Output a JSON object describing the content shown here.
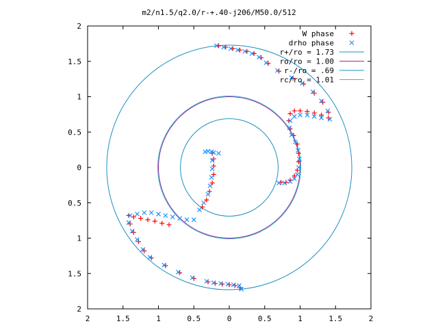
{
  "chart_data": {
    "type": "scatter",
    "title": "m2/n1.5/q2.0/r-+.40-j206/M50.0/512",
    "xlabel": "",
    "ylabel": "",
    "xlim": [
      -2,
      2
    ],
    "ylim": [
      -2,
      2
    ],
    "aspect": "equal",
    "grid": false,
    "legend_position": "top-right",
    "x_ticks": [
      -2,
      -1.5,
      -1,
      -0.5,
      0,
      0.5,
      1,
      1.5,
      2
    ],
    "y_ticks": [
      -2,
      -1.5,
      -1,
      -0.5,
      0,
      0.5,
      1,
      1.5,
      2
    ],
    "x_tick_labels": [
      "2",
      "1.5",
      "1",
      "0.5",
      "0",
      "0.5",
      "1",
      "1.5",
      "2"
    ],
    "y_tick_labels": [
      "2",
      "1.5",
      "1",
      "0.5",
      "0",
      "0.5",
      "1",
      "1.5",
      "2"
    ],
    "series": [
      {
        "name": "W phase",
        "marker": "plus",
        "color": "#ff0000",
        "points": [
          [
            -0.15,
            1.72
          ],
          [
            -0.05,
            1.7
          ],
          [
            0.05,
            1.68
          ],
          [
            0.15,
            1.66
          ],
          [
            0.25,
            1.64
          ],
          [
            0.35,
            1.61
          ],
          [
            0.45,
            1.55
          ],
          [
            0.55,
            1.47
          ],
          [
            0.7,
            1.36
          ],
          [
            0.9,
            1.26
          ],
          [
            1.05,
            1.18
          ],
          [
            1.2,
            1.05
          ],
          [
            1.32,
            0.92
          ],
          [
            1.4,
            0.78
          ],
          [
            1.4,
            0.7
          ],
          [
            1.3,
            0.74
          ],
          [
            1.2,
            0.77
          ],
          [
            1.1,
            0.79
          ],
          [
            1.0,
            0.8
          ],
          [
            0.92,
            0.8
          ],
          [
            0.86,
            0.76
          ],
          [
            0.84,
            0.66
          ],
          [
            0.86,
            0.55
          ],
          [
            0.91,
            0.45
          ],
          [
            0.96,
            0.33
          ],
          [
            0.98,
            0.2
          ],
          [
            0.98,
            0.08
          ],
          [
            0.96,
            -0.04
          ],
          [
            0.92,
            -0.12
          ],
          [
            0.86,
            -0.18
          ],
          [
            0.8,
            -0.21
          ],
          [
            0.73,
            -0.21
          ],
          [
            -0.24,
            0.2
          ],
          [
            -0.22,
            0.12
          ],
          [
            -0.22,
            0.02
          ],
          [
            -0.22,
            -0.1
          ],
          [
            -0.24,
            -0.22
          ],
          [
            -0.28,
            -0.34
          ],
          [
            -0.32,
            -0.46
          ],
          [
            -0.38,
            -0.56
          ],
          [
            -0.85,
            -0.81
          ],
          [
            -0.95,
            -0.79
          ],
          [
            -1.05,
            -0.76
          ],
          [
            -1.15,
            -0.74
          ],
          [
            -1.25,
            -0.72
          ],
          [
            -1.35,
            -0.7
          ],
          [
            -1.42,
            -0.68
          ],
          [
            -1.4,
            -0.8
          ],
          [
            -1.35,
            -0.92
          ],
          [
            -1.28,
            -1.05
          ],
          [
            -1.2,
            -1.18
          ],
          [
            -1.1,
            -1.28
          ],
          [
            -0.9,
            -1.39
          ],
          [
            -0.7,
            -1.49
          ],
          [
            -0.5,
            -1.57
          ],
          [
            -0.3,
            -1.62
          ],
          [
            -0.2,
            -1.64
          ],
          [
            -0.1,
            -1.65
          ],
          [
            0.0,
            -1.66
          ],
          [
            0.08,
            -1.67
          ],
          [
            0.15,
            -1.7
          ]
        ]
      },
      {
        "name": "drho phase",
        "marker": "cross",
        "color": "#1e90ff",
        "points": [
          [
            -0.18,
            1.72
          ],
          [
            -0.08,
            1.7
          ],
          [
            0.02,
            1.68
          ],
          [
            0.12,
            1.66
          ],
          [
            0.22,
            1.64
          ],
          [
            0.32,
            1.61
          ],
          [
            0.42,
            1.56
          ],
          [
            0.52,
            1.48
          ],
          [
            0.68,
            1.37
          ],
          [
            0.88,
            1.27
          ],
          [
            1.03,
            1.19
          ],
          [
            1.18,
            1.07
          ],
          [
            1.3,
            0.94
          ],
          [
            1.39,
            0.8
          ],
          [
            1.42,
            0.68
          ],
          [
            1.3,
            0.7
          ],
          [
            1.2,
            0.72
          ],
          [
            1.1,
            0.74
          ],
          [
            1.0,
            0.74
          ],
          [
            0.92,
            0.72
          ],
          [
            0.86,
            0.66
          ],
          [
            0.85,
            0.56
          ],
          [
            0.88,
            0.46
          ],
          [
            0.93,
            0.36
          ],
          [
            0.97,
            0.24
          ],
          [
            0.99,
            0.12
          ],
          [
            0.98,
            0.0
          ],
          [
            0.96,
            -0.1
          ],
          [
            0.92,
            -0.16
          ],
          [
            0.86,
            -0.2
          ],
          [
            0.78,
            -0.22
          ],
          [
            0.7,
            -0.22
          ],
          [
            -0.34,
            0.22
          ],
          [
            -0.3,
            0.23
          ],
          [
            -0.25,
            0.22
          ],
          [
            -0.22,
            0.21
          ],
          [
            -0.15,
            0.2
          ],
          [
            -0.24,
            0.1
          ],
          [
            -0.24,
            -0.02
          ],
          [
            -0.25,
            -0.14
          ],
          [
            -0.27,
            -0.26
          ],
          [
            -0.3,
            -0.38
          ],
          [
            -0.36,
            -0.5
          ],
          [
            -0.42,
            -0.6
          ],
          [
            -0.5,
            -0.74
          ],
          [
            -0.6,
            -0.74
          ],
          [
            -0.7,
            -0.72
          ],
          [
            -0.8,
            -0.7
          ],
          [
            -0.9,
            -0.68
          ],
          [
            -1.0,
            -0.66
          ],
          [
            -1.1,
            -0.64
          ],
          [
            -1.2,
            -0.64
          ],
          [
            -1.3,
            -0.66
          ],
          [
            -1.4,
            -0.68
          ],
          [
            -1.42,
            -0.78
          ],
          [
            -1.37,
            -0.9
          ],
          [
            -1.3,
            -1.02
          ],
          [
            -1.22,
            -1.16
          ],
          [
            -1.12,
            -1.27
          ],
          [
            -0.92,
            -1.38
          ],
          [
            -0.72,
            -1.48
          ],
          [
            -0.52,
            -1.56
          ],
          [
            -0.32,
            -1.61
          ],
          [
            -0.22,
            -1.63
          ],
          [
            -0.12,
            -1.64
          ],
          [
            -0.02,
            -1.65
          ],
          [
            0.06,
            -1.66
          ],
          [
            0.14,
            -1.67
          ],
          [
            0.17,
            -1.72
          ]
        ]
      },
      {
        "name": "r+/ro = 1.73",
        "kind": "circle",
        "radius": 1.73,
        "color": "#1a8fc0"
      },
      {
        "name": "ro/ro = 1.00",
        "kind": "circle",
        "radius": 1.0,
        "color": "#a020a0"
      },
      {
        "name": "r-/ro = .69",
        "kind": "circle",
        "radius": 0.69,
        "color": "#1a8fc0"
      },
      {
        "name": "rc/ro = 1.01",
        "kind": "circle",
        "radius": 1.01,
        "color": "#30c0d0"
      }
    ]
  }
}
